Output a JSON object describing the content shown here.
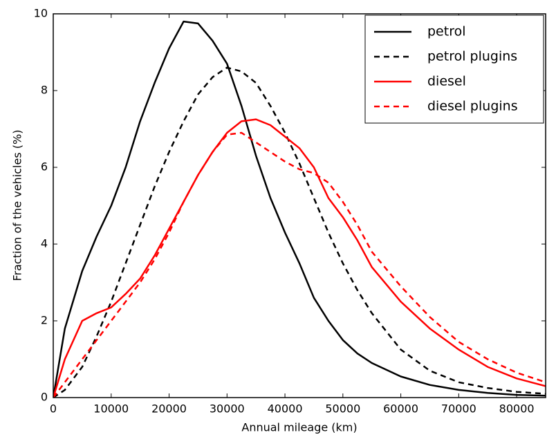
{
  "chart_data": {
    "type": "line",
    "xlabel": "Annual mileage (km)",
    "ylabel": "Fraction of the vehicles (%)",
    "x": [
      0,
      2000,
      5000,
      7500,
      10000,
      12500,
      15000,
      17500,
      20000,
      22500,
      25000,
      27500,
      30000,
      32500,
      35000,
      37500,
      40000,
      42500,
      45000,
      47500,
      50000,
      52500,
      55000,
      60000,
      65000,
      70000,
      75000,
      80000,
      85000
    ],
    "series": [
      {
        "name": "petrol",
        "color": "#000000",
        "style": "solid",
        "values": [
          0,
          1.8,
          3.3,
          4.2,
          5.0,
          6.0,
          7.2,
          8.2,
          9.1,
          9.8,
          9.75,
          9.3,
          8.7,
          7.6,
          6.3,
          5.2,
          4.3,
          3.5,
          2.6,
          2.0,
          1.5,
          1.15,
          0.9,
          0.55,
          0.33,
          0.2,
          0.12,
          0.07,
          0.05
        ]
      },
      {
        "name": "petrol plugins",
        "color": "#000000",
        "style": "dashed",
        "values": [
          0,
          0.2,
          0.8,
          1.6,
          2.5,
          3.5,
          4.5,
          5.5,
          6.4,
          7.2,
          7.9,
          8.35,
          8.6,
          8.5,
          8.2,
          7.6,
          6.9,
          6.1,
          5.2,
          4.3,
          3.5,
          2.8,
          2.2,
          1.25,
          0.7,
          0.4,
          0.25,
          0.15,
          0.1
        ]
      },
      {
        "name": "diesel",
        "color": "#ff0000",
        "style": "solid",
        "values": [
          0,
          1.0,
          2.0,
          2.2,
          2.35,
          2.7,
          3.1,
          3.7,
          4.4,
          5.1,
          5.8,
          6.4,
          6.9,
          7.2,
          7.25,
          7.1,
          6.8,
          6.5,
          6.0,
          5.2,
          4.7,
          4.1,
          3.4,
          2.5,
          1.8,
          1.25,
          0.8,
          0.5,
          0.3
        ]
      },
      {
        "name": "diesel plugins",
        "color": "#ff0000",
        "style": "dashed",
        "values": [
          0,
          0.4,
          1.0,
          1.5,
          2.0,
          2.5,
          3.0,
          3.6,
          4.3,
          5.1,
          5.8,
          6.4,
          6.85,
          6.9,
          6.65,
          6.4,
          6.15,
          5.95,
          5.85,
          5.6,
          5.1,
          4.5,
          3.8,
          2.9,
          2.1,
          1.45,
          1.0,
          0.65,
          0.4
        ]
      }
    ],
    "xlim": [
      0,
      85000
    ],
    "ylim": [
      0,
      10
    ],
    "xticks": [
      0,
      10000,
      20000,
      30000,
      40000,
      50000,
      60000,
      70000,
      80000
    ],
    "yticks": [
      0,
      2,
      4,
      6,
      8,
      10
    ],
    "legend": "upper right"
  }
}
